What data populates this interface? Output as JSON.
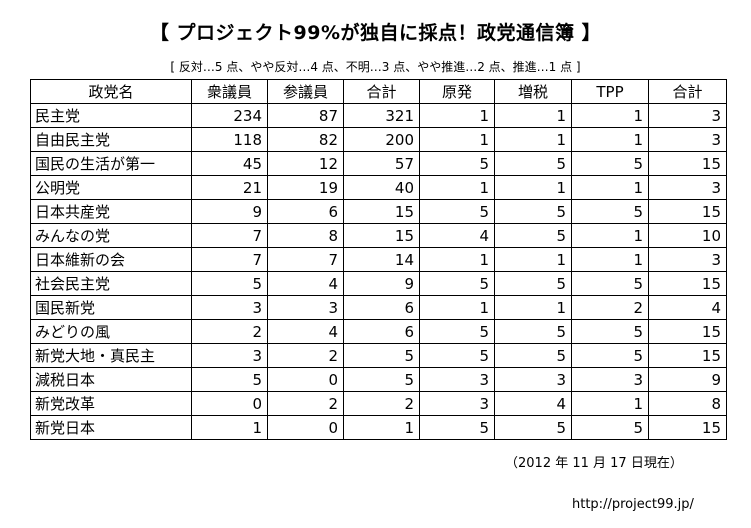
{
  "document": {
    "title": "【 プロジェクト99%が独自に採点！政党通信簿 】",
    "legend": "[ 反対…5 点、やや反対…4 点、不明…3 点、やや推進…2 点、推進…1 点 ]",
    "date_note": "（2012 年 11 月 17 日現在）",
    "url": "http://project99.jp/"
  },
  "table": {
    "headers": [
      "政党名",
      "衆議員",
      "参議員",
      "合計",
      "原発",
      "増税",
      "TPP",
      "合計"
    ],
    "rows": [
      {
        "party": "民主党",
        "shugiin": "234",
        "sangiin": "87",
        "seats_total": "321",
        "genpatsu": "1",
        "zouzei": "1",
        "tpp": "1",
        "score_total": "3"
      },
      {
        "party": "自由民主党",
        "shugiin": "118",
        "sangiin": "82",
        "seats_total": "200",
        "genpatsu": "1",
        "zouzei": "1",
        "tpp": "1",
        "score_total": "3"
      },
      {
        "party": "国民の生活が第一",
        "shugiin": "45",
        "sangiin": "12",
        "seats_total": "57",
        "genpatsu": "5",
        "zouzei": "5",
        "tpp": "5",
        "score_total": "15"
      },
      {
        "party": "公明党",
        "shugiin": "21",
        "sangiin": "19",
        "seats_total": "40",
        "genpatsu": "1",
        "zouzei": "1",
        "tpp": "1",
        "score_total": "3"
      },
      {
        "party": "日本共産党",
        "shugiin": "9",
        "sangiin": "6",
        "seats_total": "15",
        "genpatsu": "5",
        "zouzei": "5",
        "tpp": "5",
        "score_total": "15"
      },
      {
        "party": "みんなの党",
        "shugiin": "7",
        "sangiin": "8",
        "seats_total": "15",
        "genpatsu": "4",
        "zouzei": "5",
        "tpp": "1",
        "score_total": "10"
      },
      {
        "party": "日本維新の会",
        "shugiin": "7",
        "sangiin": "7",
        "seats_total": "14",
        "genpatsu": "1",
        "zouzei": "1",
        "tpp": "1",
        "score_total": "3"
      },
      {
        "party": "社会民主党",
        "shugiin": "5",
        "sangiin": "4",
        "seats_total": "9",
        "genpatsu": "5",
        "zouzei": "5",
        "tpp": "5",
        "score_total": "15"
      },
      {
        "party": "国民新党",
        "shugiin": "3",
        "sangiin": "3",
        "seats_total": "6",
        "genpatsu": "1",
        "zouzei": "1",
        "tpp": "2",
        "score_total": "4"
      },
      {
        "party": "みどりの風",
        "shugiin": "2",
        "sangiin": "4",
        "seats_total": "6",
        "genpatsu": "5",
        "zouzei": "5",
        "tpp": "5",
        "score_total": "15"
      },
      {
        "party": "新党大地・真民主",
        "shugiin": "3",
        "sangiin": "2",
        "seats_total": "5",
        "genpatsu": "5",
        "zouzei": "5",
        "tpp": "5",
        "score_total": "15"
      },
      {
        "party": "減税日本",
        "shugiin": "5",
        "sangiin": "0",
        "seats_total": "5",
        "genpatsu": "3",
        "zouzei": "3",
        "tpp": "3",
        "score_total": "9"
      },
      {
        "party": "新党改革",
        "shugiin": "0",
        "sangiin": "2",
        "seats_total": "2",
        "genpatsu": "3",
        "zouzei": "4",
        "tpp": "1",
        "score_total": "8"
      },
      {
        "party": "新党日本",
        "shugiin": "1",
        "sangiin": "0",
        "seats_total": "1",
        "genpatsu": "5",
        "zouzei": "5",
        "tpp": "5",
        "score_total": "15"
      }
    ]
  }
}
